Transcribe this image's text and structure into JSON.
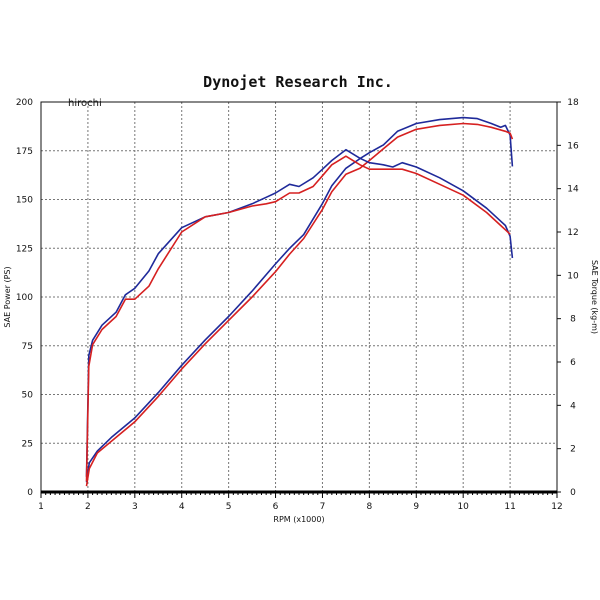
{
  "chart_data": {
    "type": "line",
    "title": "Dynojet  Research  Inc.",
    "annotation": "hirochi",
    "xlabel": "RPM (x1000)",
    "ylabel": "SAE Power (PS)",
    "y2label": "SAE Torque (kg-m)",
    "xlim": [
      1,
      12
    ],
    "ylim": [
      0,
      200
    ],
    "y2lim": [
      0,
      18
    ],
    "x_ticks": [
      "1",
      "2",
      "3",
      "4",
      "5",
      "6",
      "7",
      "8",
      "9",
      "10",
      "11",
      "12"
    ],
    "y_ticks": [
      "0",
      "25",
      "50",
      "75",
      "100",
      "125",
      "150",
      "175",
      "200"
    ],
    "y2_ticks": [
      "0",
      "2",
      "4",
      "6",
      "8",
      "10",
      "12",
      "14",
      "16",
      "18"
    ],
    "grid": true,
    "series": [
      {
        "axis": "left",
        "color": "#1f2a9a",
        "points": [
          [
            1.97,
            5
          ],
          [
            2.03,
            15
          ],
          [
            2.2,
            21
          ],
          [
            2.5,
            28
          ],
          [
            3,
            38
          ],
          [
            3.5,
            51
          ],
          [
            4,
            65
          ],
          [
            4.5,
            78
          ],
          [
            5,
            90
          ],
          [
            5.5,
            103
          ],
          [
            6,
            117
          ],
          [
            6.3,
            125
          ],
          [
            6.6,
            132
          ],
          [
            7,
            148
          ],
          [
            7.2,
            157
          ],
          [
            7.5,
            166
          ],
          [
            7.8,
            171
          ],
          [
            8,
            174
          ],
          [
            8.3,
            178
          ],
          [
            8.6,
            185
          ],
          [
            9,
            189
          ],
          [
            9.5,
            191
          ],
          [
            10,
            192
          ],
          [
            10.3,
            191.5
          ],
          [
            10.6,
            189
          ],
          [
            10.8,
            187
          ],
          [
            10.9,
            188
          ],
          [
            11,
            183
          ],
          [
            11.05,
            167
          ]
        ]
      },
      {
        "axis": "left",
        "color": "#d62020",
        "points": [
          [
            1.97,
            3
          ],
          [
            2.03,
            12
          ],
          [
            2.2,
            20
          ],
          [
            2.5,
            26
          ],
          [
            3,
            36
          ],
          [
            3.5,
            49
          ],
          [
            4,
            63
          ],
          [
            4.5,
            76
          ],
          [
            5,
            88
          ],
          [
            5.5,
            100
          ],
          [
            6,
            113
          ],
          [
            6.3,
            122
          ],
          [
            6.6,
            130
          ],
          [
            7,
            145
          ],
          [
            7.2,
            154
          ],
          [
            7.5,
            163
          ],
          [
            7.8,
            166
          ],
          [
            8,
            170
          ],
          [
            8.3,
            176
          ],
          [
            8.6,
            182
          ],
          [
            9,
            186
          ],
          [
            9.5,
            188
          ],
          [
            10,
            189
          ],
          [
            10.3,
            188.5
          ],
          [
            10.6,
            187
          ],
          [
            10.9,
            185
          ],
          [
            11,
            184
          ],
          [
            11.05,
            181
          ]
        ]
      },
      {
        "axis": "right",
        "color": "#1f2a9a",
        "points": [
          [
            1.97,
            0.7
          ],
          [
            2.02,
            6.3
          ],
          [
            2.1,
            7
          ],
          [
            2.3,
            7.7
          ],
          [
            2.6,
            8.3
          ],
          [
            2.8,
            9.1
          ],
          [
            3,
            9.4
          ],
          [
            3.3,
            10.2
          ],
          [
            3.5,
            11
          ],
          [
            4,
            12.2
          ],
          [
            4.5,
            12.7
          ],
          [
            5,
            12.9
          ],
          [
            5.5,
            13.3
          ],
          [
            5.8,
            13.6
          ],
          [
            6,
            13.8
          ],
          [
            6.3,
            14.2
          ],
          [
            6.5,
            14.1
          ],
          [
            6.8,
            14.5
          ],
          [
            7,
            14.9
          ],
          [
            7.2,
            15.3
          ],
          [
            7.5,
            15.8
          ],
          [
            7.8,
            15.4
          ],
          [
            8,
            15.2
          ],
          [
            8.3,
            15.1
          ],
          [
            8.5,
            15
          ],
          [
            8.7,
            15.2
          ],
          [
            9,
            15
          ],
          [
            9.5,
            14.5
          ],
          [
            10,
            13.9
          ],
          [
            10.5,
            13.1
          ],
          [
            10.8,
            12.5
          ],
          [
            10.9,
            12.3
          ],
          [
            11,
            11.8
          ],
          [
            11.05,
            10.8
          ]
        ]
      },
      {
        "axis": "right",
        "color": "#d62020",
        "points": [
          [
            1.97,
            0.5
          ],
          [
            2.02,
            5.8
          ],
          [
            2.1,
            6.8
          ],
          [
            2.3,
            7.5
          ],
          [
            2.6,
            8.1
          ],
          [
            2.8,
            8.9
          ],
          [
            3,
            8.9
          ],
          [
            3.3,
            9.5
          ],
          [
            3.5,
            10.3
          ],
          [
            4,
            12
          ],
          [
            4.5,
            12.7
          ],
          [
            5,
            12.9
          ],
          [
            5.5,
            13.2
          ],
          [
            5.8,
            13.3
          ],
          [
            6,
            13.4
          ],
          [
            6.3,
            13.8
          ],
          [
            6.5,
            13.8
          ],
          [
            6.8,
            14.1
          ],
          [
            7,
            14.6
          ],
          [
            7.2,
            15.1
          ],
          [
            7.5,
            15.5
          ],
          [
            7.8,
            15.1
          ],
          [
            8,
            14.9
          ],
          [
            8.3,
            14.9
          ],
          [
            8.5,
            14.9
          ],
          [
            8.7,
            14.9
          ],
          [
            9,
            14.7
          ],
          [
            9.5,
            14.2
          ],
          [
            10,
            13.7
          ],
          [
            10.5,
            12.9
          ],
          [
            10.8,
            12.3
          ],
          [
            10.9,
            12.1
          ],
          [
            11,
            11.9
          ]
        ]
      }
    ]
  }
}
